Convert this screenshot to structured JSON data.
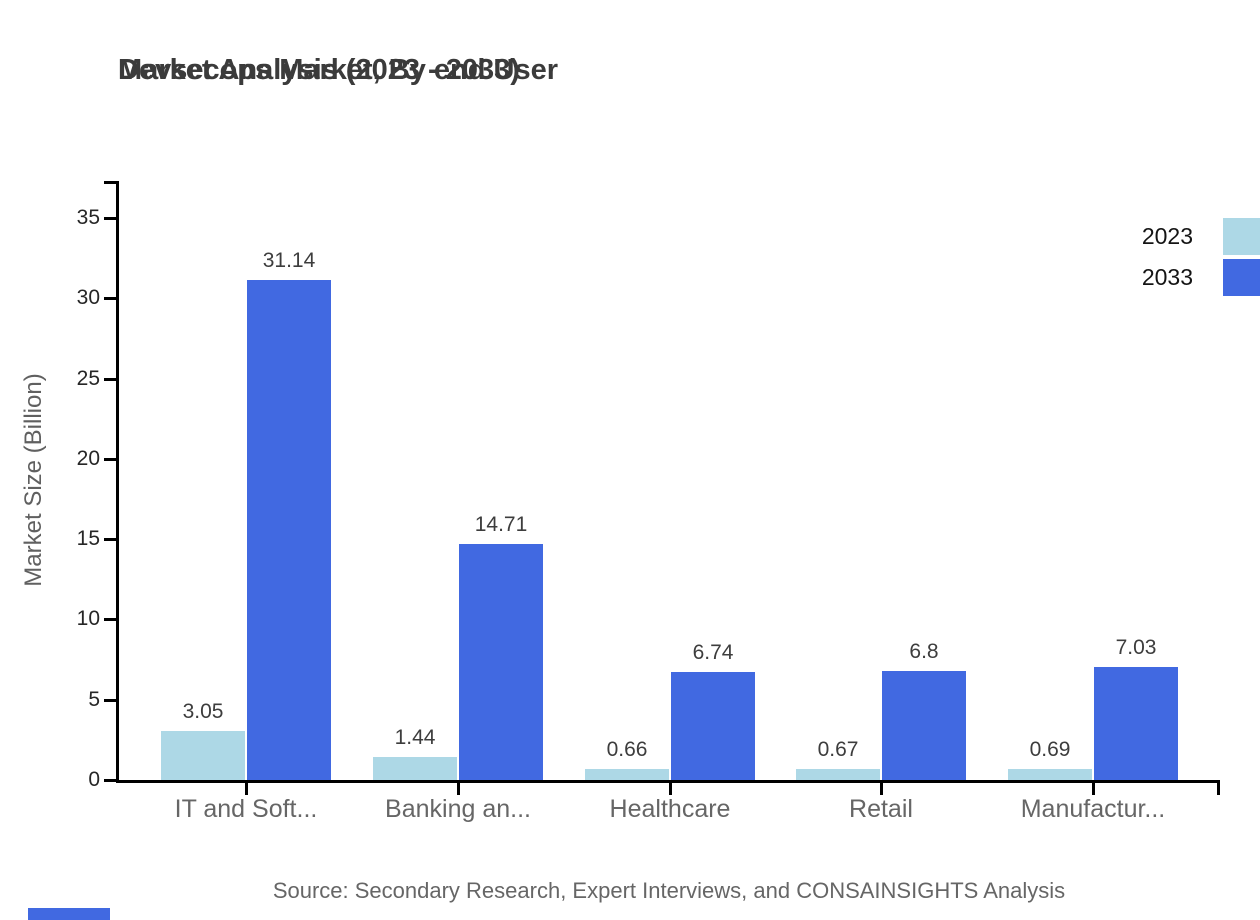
{
  "title": {
    "line1": "Devsecops Market, By end User",
    "line2": "Market Analysis (2023 - 2033)"
  },
  "source": "Source: Secondary Research, Expert Interviews, and CONSAINSIGHTS Analysis",
  "legend": {
    "items": [
      {
        "label": "2023",
        "color": "#ADD8E6"
      },
      {
        "label": "2033",
        "color": "#4169E1"
      }
    ]
  },
  "chart_data": {
    "type": "bar",
    "title": "Devsecops Market, By end User Market Analysis (2023 - 2033)",
    "categories": [
      "IT and Soft...",
      "Banking an...",
      "Healthcare",
      "Retail",
      "Manufactur..."
    ],
    "series": [
      {
        "name": "2023",
        "color": "#ADD8E6",
        "values": [
          3.05,
          1.44,
          0.66,
          0.67,
          0.69
        ],
        "labels": [
          "3.05",
          "1.44",
          "0.66",
          "0.67",
          "0.69"
        ]
      },
      {
        "name": "2033",
        "color": "#4169E1",
        "values": [
          31.14,
          14.71,
          6.74,
          6.8,
          7.03
        ],
        "labels": [
          "31.14",
          "14.71",
          "6.74",
          "6.8",
          "7.03"
        ]
      }
    ],
    "xlabel": "",
    "ylabel": "Market Size (Billion)",
    "ylim": [
      0,
      37.5
    ],
    "yticks": [
      0,
      5,
      10,
      15,
      20,
      25,
      30,
      35
    ],
    "grid": false,
    "legend_position": "top-right",
    "value_labels": true
  },
  "colors": {
    "axis": "#000000",
    "title_text": "#3b3b3b",
    "tick_text": "#262626",
    "category_text": "#666666",
    "value_text": "#3d3d3d",
    "source_text": "#666666",
    "series_2023": "#ADD8E6",
    "series_2033": "#4169E1",
    "brand_stripe": "#4169E1"
  }
}
